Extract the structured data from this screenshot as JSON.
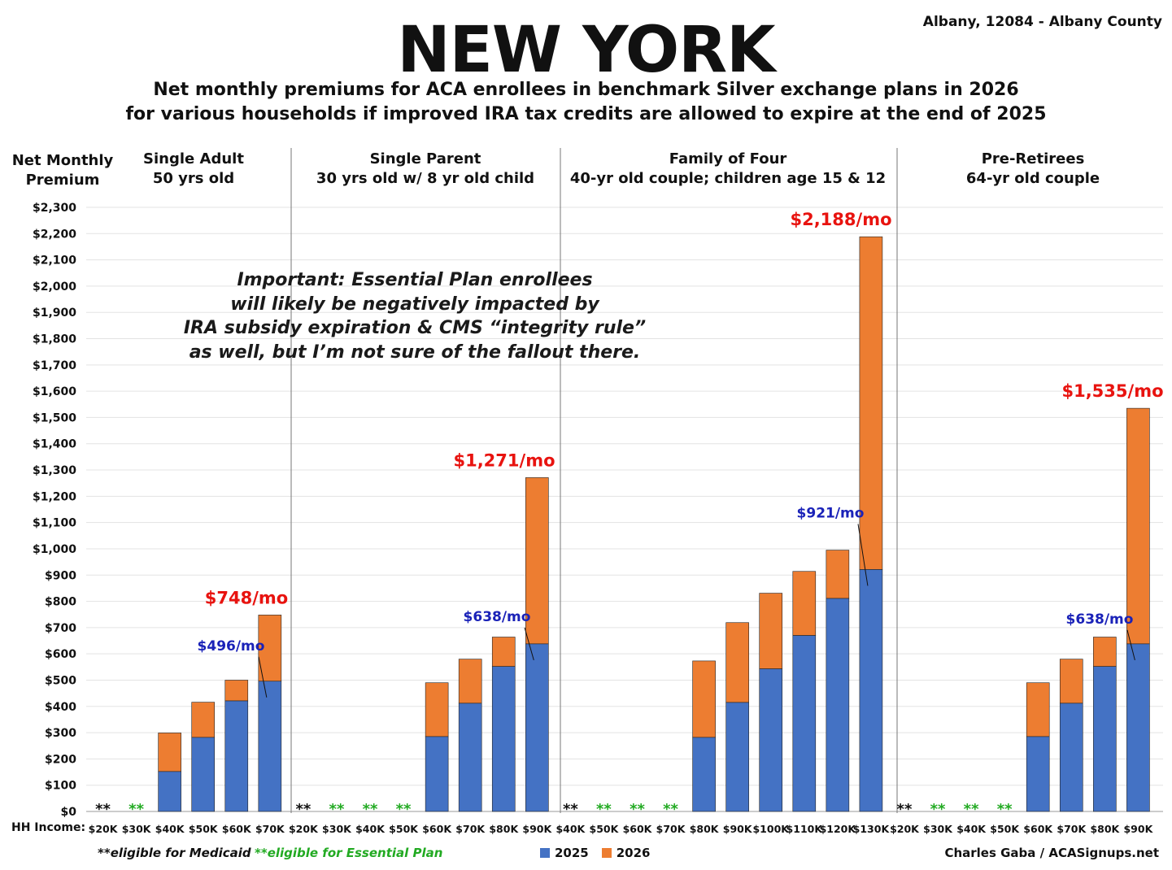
{
  "header": {
    "title": "NEW YORK",
    "location": "Albany, 12084 - Albany County",
    "subtitle_line1": "Net monthly premiums for ACA enrollees in benchmark Silver exchange plans in 2026",
    "subtitle_line2": "for various households if improved IRA tax credits are allowed to expire at the end of 2025"
  },
  "y_title_line1": "Net Monthly",
  "y_title_line2": "Premium",
  "note": {
    "line1": "Important: Essential Plan enrollees",
    "line2": "will likely be negatively impacted by",
    "line3": "IRA subsidy expiration & CMS “integrity rule”",
    "line4": "as well, but I’m not sure of the fallout there."
  },
  "footer": {
    "hh_label": "HH Income:",
    "medicaid_note": "**eligible for Medicaid",
    "ep_note": "**eligible for Essential Plan",
    "legend_2025": "2025",
    "legend_2026": "2026",
    "credit": "Charles Gaba / ACASignups.net"
  },
  "colors": {
    "series_2025": "#4472c4",
    "series_2026": "#ed7d31",
    "medicaid_star": "#111111",
    "essential_plan_star": "#22aa22",
    "annotation_2026": "#e8130f",
    "annotation_2025": "#1a22b8"
  },
  "chart_data": {
    "type": "bar",
    "stacked": true,
    "ylim": [
      0,
      2300
    ],
    "y_tick_step": 100,
    "y_tick_format": "$#,###",
    "grid": true,
    "legend_position": "bottom",
    "series_names": [
      "2025",
      "2026"
    ],
    "groups": [
      {
        "head1": "Single Adult",
        "head2": "50 yrs old",
        "categories": [
          "$20K",
          "$30K",
          "$40K",
          "$50K",
          "$60K",
          "$70K"
        ],
        "v2025": [
          0,
          0,
          152,
          282,
          421,
          496
        ],
        "v2026": [
          0,
          0,
          299,
          416,
          500,
          748
        ],
        "markers": [
          "medicaid",
          "essential",
          null,
          null,
          null,
          null
        ],
        "label_2026": "$748/mo",
        "label_2025": "$496/mo"
      },
      {
        "head1": "Single Parent",
        "head2": "30 yrs old w/ 8 yr old child",
        "categories": [
          "$20K",
          "$30K",
          "$40K",
          "$50K",
          "$60K",
          "$70K",
          "$80K",
          "$90K"
        ],
        "v2025": [
          0,
          0,
          0,
          0,
          285,
          412,
          552,
          638
        ],
        "v2026": [
          0,
          0,
          0,
          0,
          490,
          580,
          664,
          1271
        ],
        "markers": [
          "medicaid",
          "essential",
          "essential",
          "essential",
          null,
          null,
          null,
          null
        ],
        "label_2026": "$1,271/mo",
        "label_2025": "$638/mo"
      },
      {
        "head1": "Family of Four",
        "head2": "40-yr old couple; children age 15 & 12",
        "categories": [
          "$40K",
          "$50K",
          "$60K",
          "$70K",
          "$80K",
          "$90K",
          "$100K",
          "$110K",
          "$120K",
          "$130K"
        ],
        "v2025": [
          0,
          0,
          0,
          0,
          282,
          415,
          543,
          670,
          811,
          921
        ],
        "v2026": [
          0,
          0,
          0,
          0,
          573,
          719,
          831,
          914,
          995,
          2188
        ],
        "markers": [
          "medicaid",
          "essential",
          "essential",
          "essential",
          null,
          null,
          null,
          null,
          null,
          null
        ],
        "label_2026": "$2,188/mo",
        "label_2025": "$921/mo"
      },
      {
        "head1": "Pre-Retirees",
        "head2": "64-yr old couple",
        "categories": [
          "$20K",
          "$30K",
          "$40K",
          "$50K",
          "$60K",
          "$70K",
          "$80K",
          "$90K"
        ],
        "v2025": [
          0,
          0,
          0,
          0,
          285,
          412,
          552,
          638
        ],
        "v2026": [
          0,
          0,
          0,
          0,
          490,
          580,
          664,
          1535
        ],
        "markers": [
          "medicaid",
          "essential",
          "essential",
          "essential",
          null,
          null,
          null,
          null
        ],
        "label_2026": "$1,535/mo",
        "label_2025": "$638/mo"
      }
    ]
  }
}
